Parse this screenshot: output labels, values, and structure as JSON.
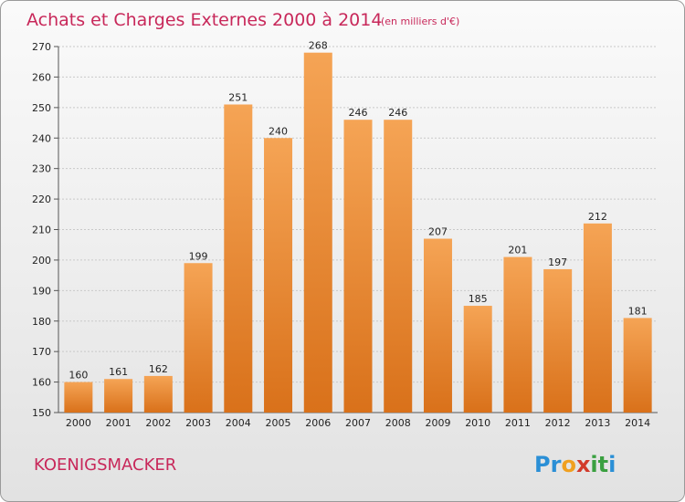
{
  "chart_data": {
    "type": "bar",
    "title": "Achats et Charges Externes 2000 à 2014",
    "subtitle": "(en milliers d'€)",
    "categories": [
      "2000",
      "2001",
      "2002",
      "2003",
      "2004",
      "2005",
      "2006",
      "2007",
      "2008",
      "2009",
      "2010",
      "2011",
      "2012",
      "2013",
      "2014"
    ],
    "values": [
      160,
      161,
      162,
      199,
      251,
      240,
      268,
      246,
      246,
      207,
      185,
      201,
      197,
      212,
      181
    ],
    "ylim": [
      150,
      270
    ],
    "yticks": [
      150,
      160,
      170,
      180,
      190,
      200,
      210,
      220,
      230,
      240,
      250,
      260,
      270
    ],
    "grid": true,
    "bar_color": "#f0892a"
  },
  "commune": "KOENIGSMACKER",
  "logo": {
    "letters": [
      "P",
      "r",
      "o",
      "x",
      "i",
      "t",
      "i"
    ],
    "colors": [
      "#2a8fd6",
      "#2a8fd6",
      "#f0a020",
      "#d23a2a",
      "#3aa040",
      "#3aa040",
      "#2a8fd6"
    ]
  }
}
